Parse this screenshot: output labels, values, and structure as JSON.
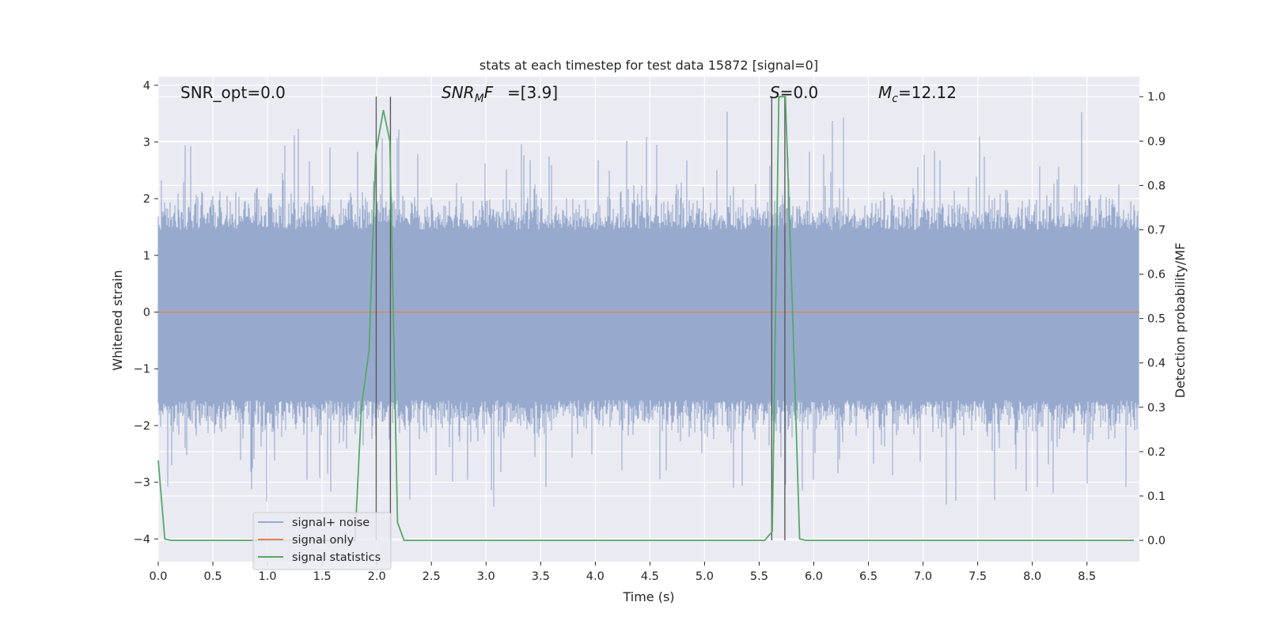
{
  "chart_data": {
    "type": "line",
    "title": "stats at each timestep for test data 15872 [signal=0]",
    "xlabel": "Time (s)",
    "ylabel_left": "Whitened strain",
    "ylabel_right": "Detection probability/MF",
    "xlim": [
      0.0,
      8.98
    ],
    "ylim_left": [
      -4.4,
      4.15
    ],
    "ylim_right": [
      -0.048,
      1.045
    ],
    "x_ticks": [
      "0.0",
      "0.5",
      "1.0",
      "1.5",
      "2.0",
      "2.5",
      "3.0",
      "3.5",
      "4.0",
      "4.5",
      "5.0",
      "5.5",
      "6.0",
      "6.5",
      "7.0",
      "7.5",
      "8.0",
      "8.5"
    ],
    "y_left_ticks": [
      "4",
      "3",
      "2",
      "1",
      "0",
      "−1",
      "−2",
      "−3",
      "−4"
    ],
    "y_right_ticks": [
      "1.0",
      "0.9",
      "0.8",
      "0.7",
      "0.6",
      "0.5",
      "0.4",
      "0.3",
      "0.2",
      "0.1",
      "0.0"
    ],
    "grid": true,
    "legend_position": "lower-left",
    "colors": {
      "background": "#eaeaf2",
      "signal_noise": "#97aacd",
      "signal_only": "#dd8452",
      "signal_statistics": "#55a868",
      "vlines": "#5a5a5a"
    },
    "annotations": {
      "snr_opt": "SNR_opt=0.0",
      "snr_mf_main": "SNR",
      "snr_mf_sub": "M",
      "snr_mf_rest": "F=[3.9]",
      "s_main": "S",
      "s_rest": "=0.0",
      "mc_main": "M",
      "mc_sub": "c",
      "mc_rest": "=12.12"
    },
    "vertical_lines_x": [
      1.995,
      2.125,
      5.615,
      5.735
    ],
    "series": [
      {
        "name": "signal+ noise",
        "axis": "left",
        "description_level": "noise band about 0 with spikes",
        "x_range": [
          0.0,
          8.98
        ]
      },
      {
        "name": "signal only",
        "axis": "left",
        "x": [
          0.0,
          8.98
        ],
        "y": [
          0.0,
          0.0
        ]
      },
      {
        "name": "signal statistics",
        "axis": "right",
        "x": [
          0.0,
          0.06,
          0.12,
          1.8,
          1.86,
          1.93,
          1.99,
          2.06,
          2.12,
          2.19,
          2.25,
          5.55,
          5.62,
          5.68,
          5.74,
          5.81,
          5.87,
          5.93,
          8.93
        ],
        "y": [
          0.18,
          0.003,
          0.0,
          0.0,
          0.3,
          0.43,
          0.87,
          0.97,
          0.9,
          0.04,
          0.0,
          0.0,
          0.02,
          1.0,
          1.0,
          0.48,
          0.003,
          0.0,
          0.0
        ]
      }
    ]
  },
  "legend": {
    "items": [
      {
        "label": "signal+ noise"
      },
      {
        "label": "signal only"
      },
      {
        "label": "signal statistics"
      }
    ]
  }
}
